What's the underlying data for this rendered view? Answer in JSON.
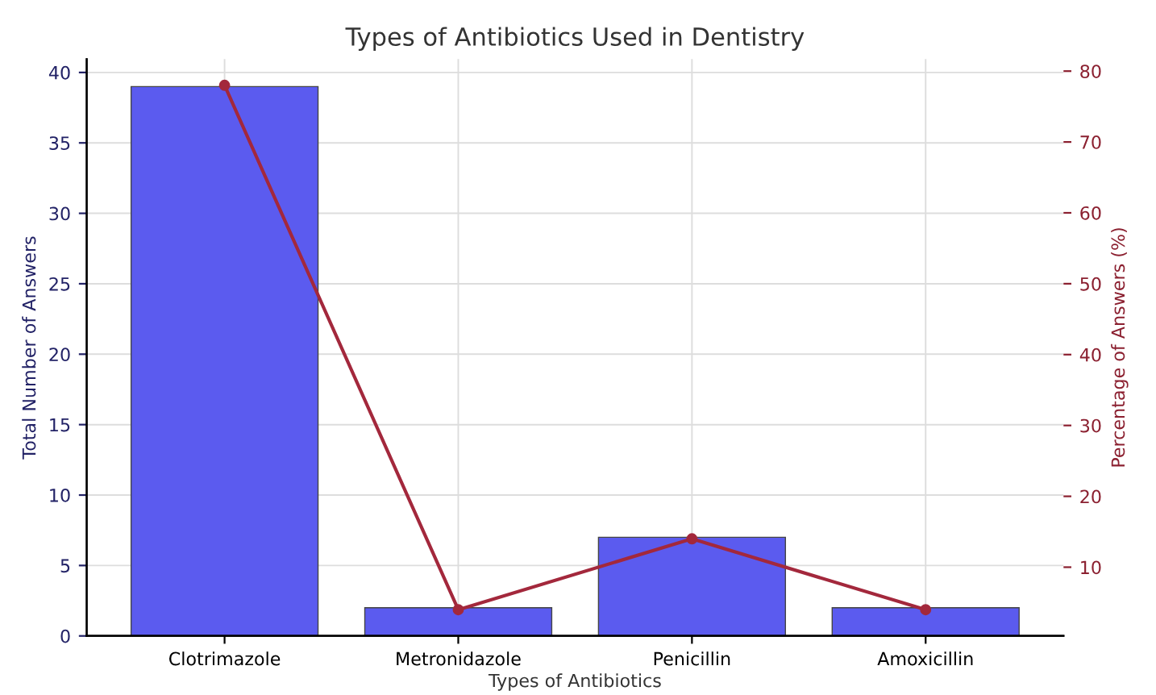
{
  "chart_data": {
    "type": "bar",
    "title": "Types of Antibiotics Used in Dentistry",
    "xlabel": "Types of Antibiotics",
    "ylabel": "Total Number of Answers",
    "y2label": "Percentage of Answers (%)",
    "categories": [
      "Clotrimazole",
      "Metronidazole",
      "Penicillin",
      "Amoxicillin"
    ],
    "series": [
      {
        "color": "#5b5bef",
        "values": [
          39,
          2,
          7,
          2
        ]
      },
      {
        "type": "line",
        "axis": "y2",
        "color": "#a3283c",
        "values": [
          78,
          4,
          14,
          4
        ]
      }
    ],
    "ylim": [
      0,
      40.95
    ],
    "yticks": [
      0,
      5,
      10,
      15,
      20,
      25,
      30,
      35,
      40
    ],
    "y2lim": [
      0.3,
      81.7
    ],
    "y2ticks": [
      10,
      20,
      30,
      40,
      50,
      60,
      70,
      80
    ],
    "grid": true,
    "marker": "circle",
    "line_style": "solid"
  }
}
